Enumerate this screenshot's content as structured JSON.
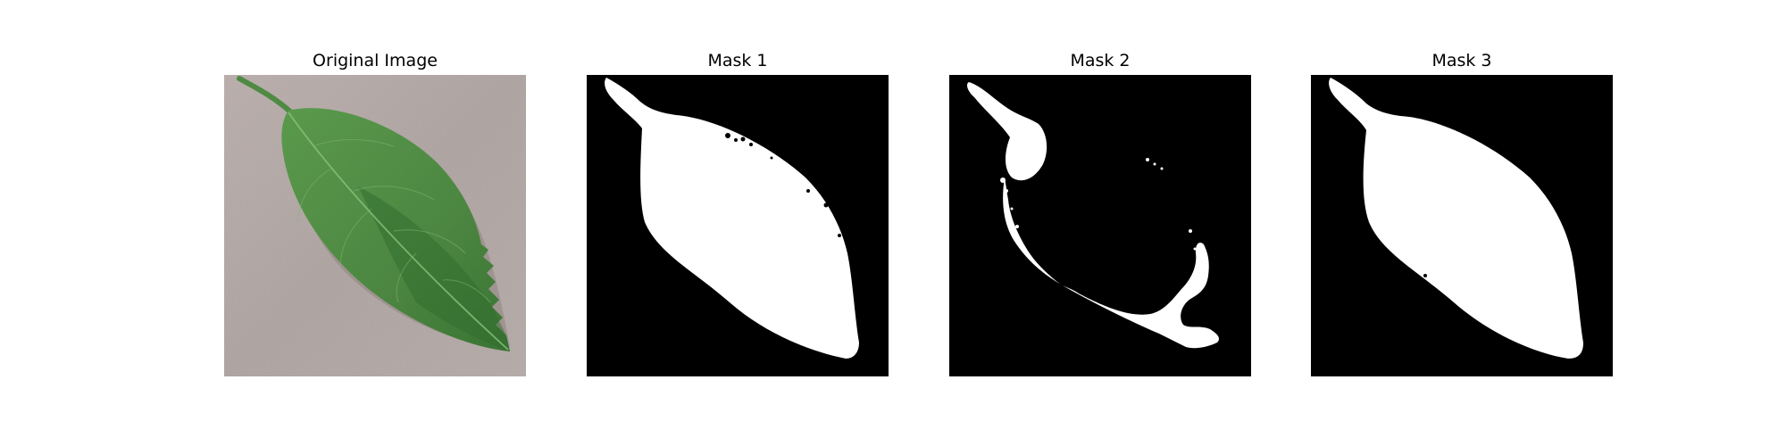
{
  "figure": {
    "panels": [
      {
        "title": "Original Image",
        "kind": "photo",
        "content": "leaf-photo"
      },
      {
        "title": "Mask 1",
        "kind": "mask",
        "content": "leaf-mask"
      },
      {
        "title": "Mask 2",
        "kind": "mask",
        "content": "leaf-mask"
      },
      {
        "title": "Mask 3",
        "kind": "mask",
        "content": "leaf-mask"
      }
    ],
    "colors": {
      "background": "#ffffff",
      "mask_background": "#000000",
      "mask_foreground": "#ffffff",
      "sand": "#b2a6a3",
      "leaf_green": "#4f8a43",
      "leaf_dark": "#2f6b2e"
    }
  }
}
